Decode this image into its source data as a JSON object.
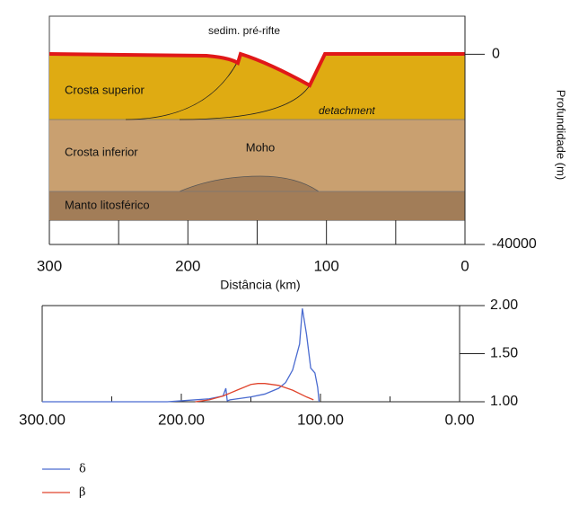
{
  "chart_data": [
    {
      "type": "section",
      "annotations": [
        "sedim. pré-rifte",
        "Crosta superior",
        "detachment",
        "Crosta inferior",
        "Moho",
        "Manto litosférico"
      ],
      "xlabel": "Distância (km)",
      "ylabel": "Profundidade (m)",
      "xlim": [
        300,
        0
      ],
      "xticks": [
        300,
        200,
        100,
        0
      ],
      "xminor": [
        250,
        150,
        50
      ],
      "ylim": [
        -40000,
        8000
      ],
      "yticks": [
        0,
        -40000
      ]
    },
    {
      "type": "line",
      "xlim": [
        300,
        0
      ],
      "xticks": [
        {
          "value": 300,
          "label": "300.00"
        },
        {
          "value": 200,
          "label": "200.00"
        },
        {
          "value": 100,
          "label": "100.00"
        },
        {
          "value": 0,
          "label": "0.00"
        }
      ],
      "xminor": [
        250,
        150,
        50
      ],
      "ylim": [
        1,
        2
      ],
      "yticks": [
        {
          "value": 1,
          "label": "1.00"
        },
        {
          "value": 1.5,
          "label": "1.50"
        },
        {
          "value": 2,
          "label": "2.00"
        }
      ],
      "series": [
        {
          "name": "δ",
          "color": "#4a6bd0",
          "x": [
            300,
            210,
            200,
            180,
            170,
            168,
            167,
            165,
            150,
            140,
            130,
            125,
            120,
            115,
            113,
            110,
            107,
            104,
            102,
            101
          ],
          "values": [
            1,
            1,
            1.01,
            1.03,
            1.06,
            1.14,
            1.01,
            1.02,
            1.05,
            1.08,
            1.14,
            1.2,
            1.33,
            1.6,
            1.97,
            1.7,
            1.35,
            1.3,
            1.15,
            1
          ]
        },
        {
          "name": "β",
          "color": "#e0442c",
          "x": [
            190,
            180,
            170,
            160,
            150,
            145,
            140,
            130,
            120,
            110,
            105
          ],
          "values": [
            1,
            1.02,
            1.06,
            1.12,
            1.18,
            1.19,
            1.19,
            1.17,
            1.12,
            1.05,
            1.02
          ]
        }
      ]
    }
  ]
}
